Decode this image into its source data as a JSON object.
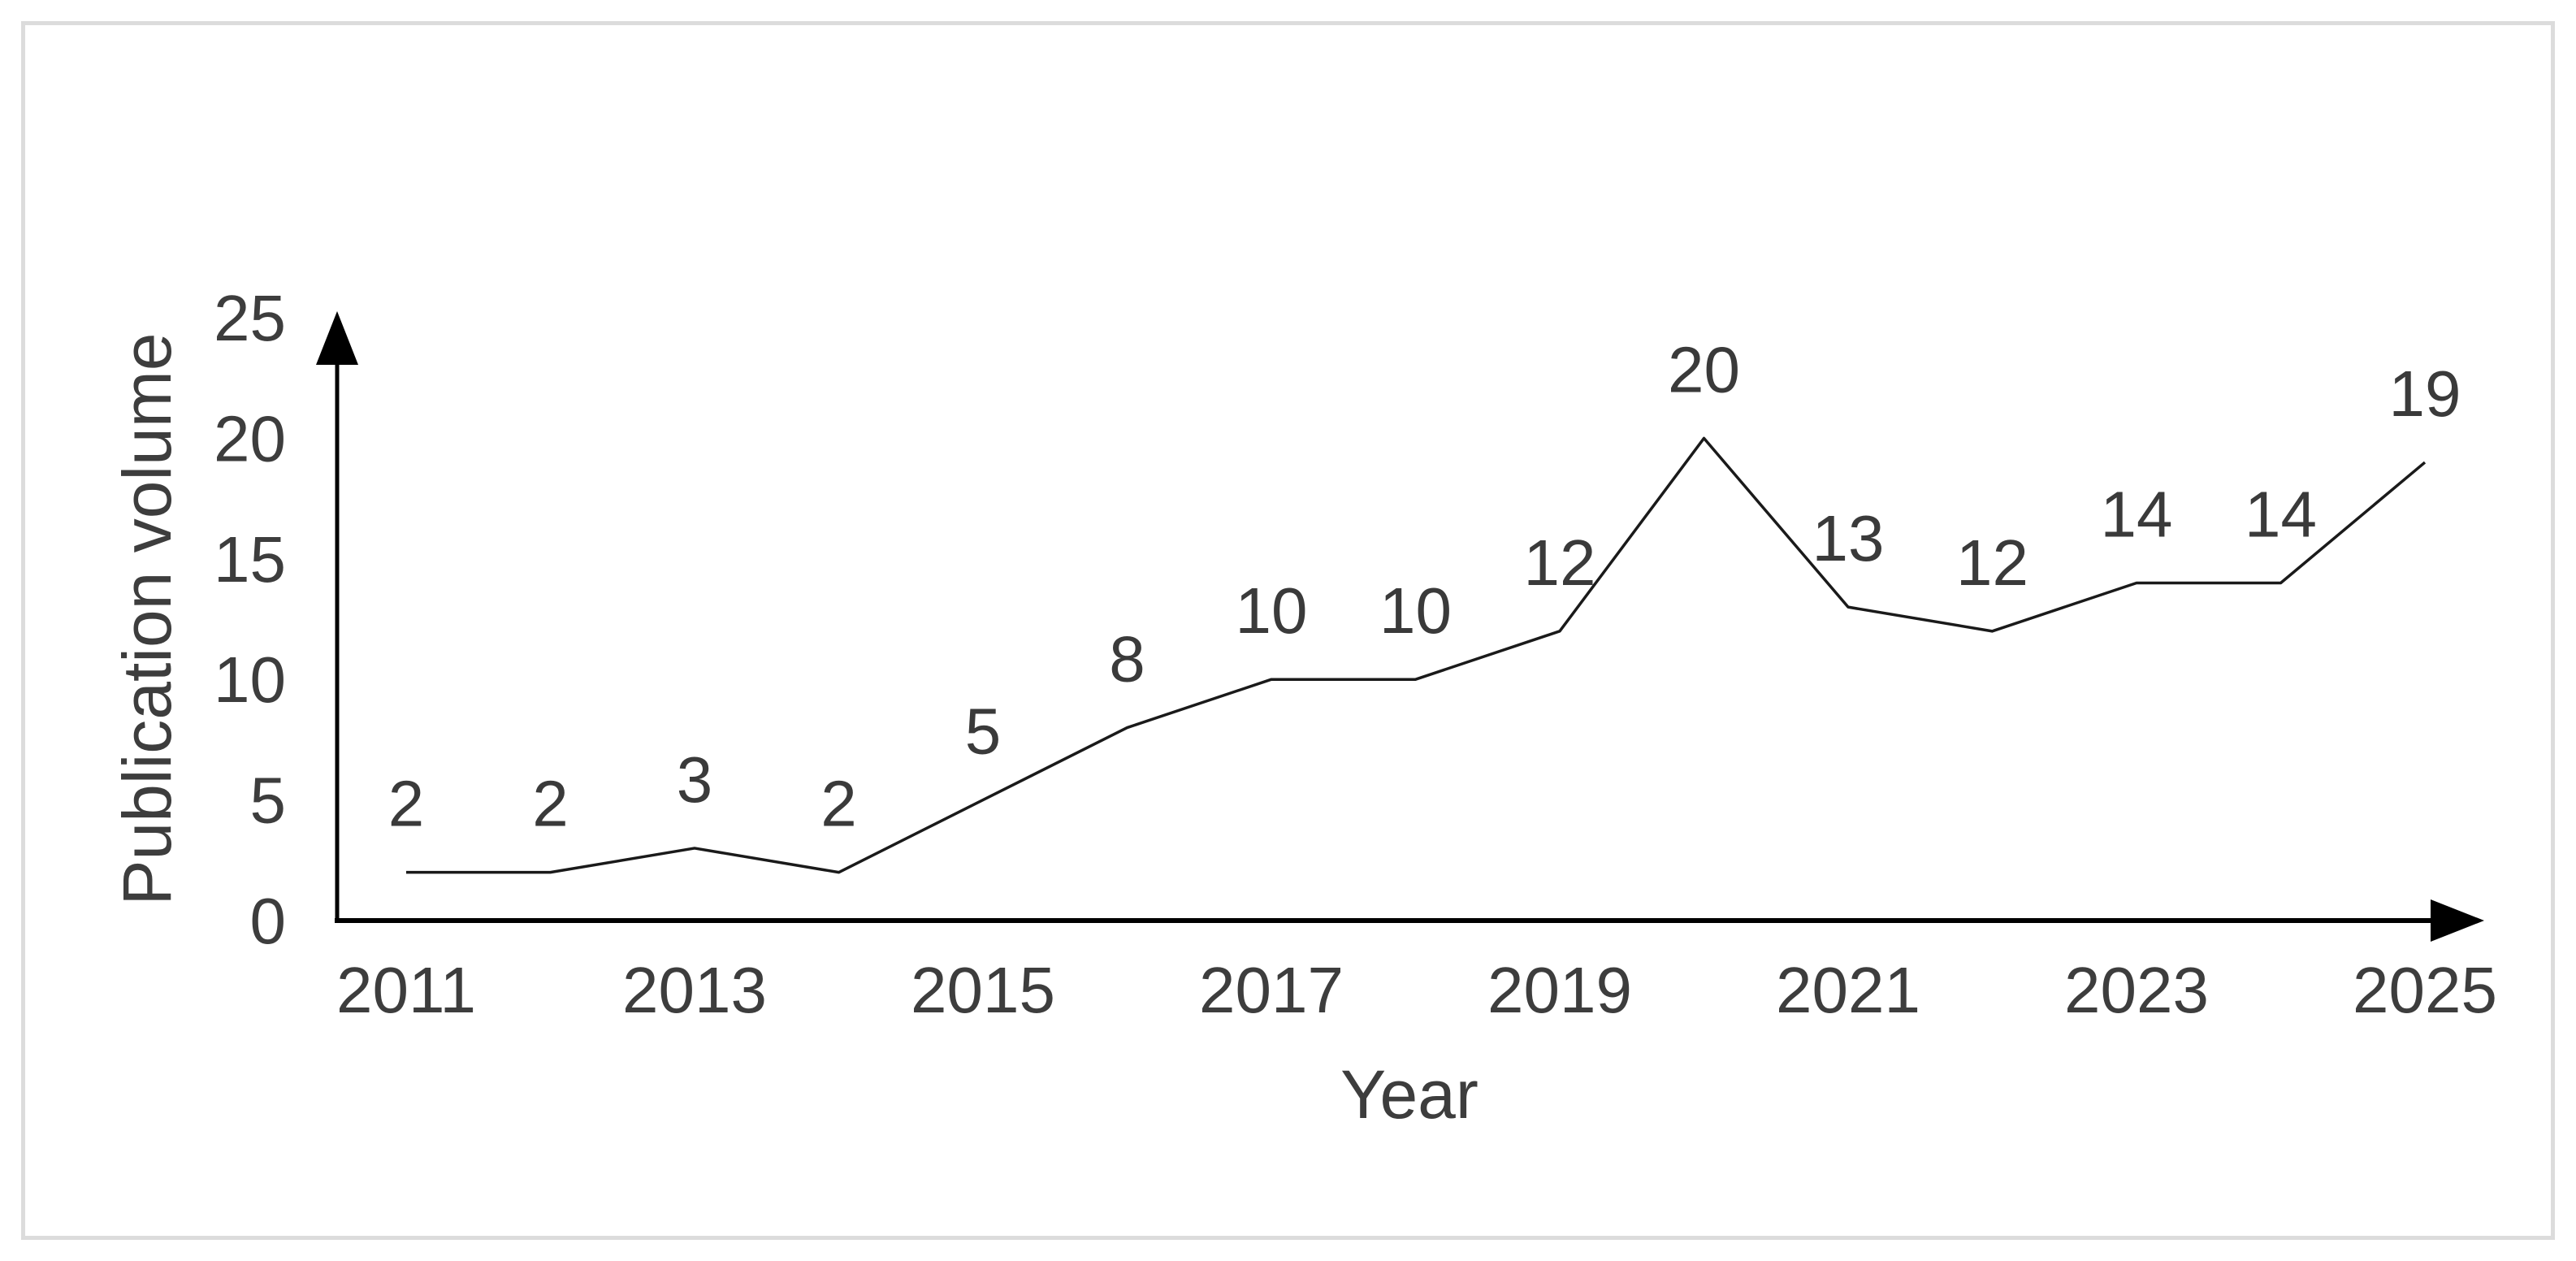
{
  "frame": {
    "border_color": "#dcdcdc",
    "background_color": "#ffffff"
  },
  "chart_data": {
    "type": "line",
    "title": "",
    "xlabel": "Year",
    "ylabel": "Publication volume",
    "x": [
      2011,
      2012,
      2013,
      2014,
      2015,
      2016,
      2017,
      2018,
      2019,
      2020,
      2021,
      2022,
      2023,
      2024,
      2025
    ],
    "values": [
      2,
      2,
      3,
      2,
      5,
      8,
      10,
      10,
      12,
      20,
      13,
      12,
      14,
      14,
      19
    ],
    "series": [
      {
        "name": "Publication volume",
        "values": [
          2,
          2,
          3,
          2,
          5,
          8,
          10,
          10,
          12,
          20,
          13,
          12,
          14,
          14,
          19
        ]
      }
    ],
    "data_labels_shown": true,
    "xticks": [
      2011,
      2013,
      2015,
      2017,
      2019,
      2021,
      2023,
      2025
    ],
    "yticks": [
      0,
      5,
      10,
      15,
      20,
      25
    ],
    "xlim": [
      2011,
      2025
    ],
    "ylim": [
      0,
      25
    ],
    "grid": false,
    "legend_position": "none",
    "axes_have_arrowheads": true,
    "line_color": "#1a1a1a",
    "axis_color": "#000000",
    "text_color": "#3d3d3d"
  }
}
